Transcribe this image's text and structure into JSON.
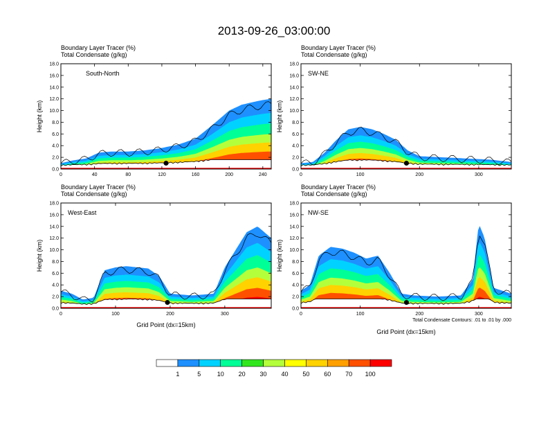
{
  "title": "2013-09-26_03:00:00",
  "colorbar": {
    "labels": [
      "1",
      "5",
      "10",
      "20",
      "30",
      "40",
      "50",
      "60",
      "70",
      "100"
    ],
    "colors": [
      "#ffffff",
      "#1e90ff",
      "#00d2ff",
      "#00ff96",
      "#32e61e",
      "#b4ff3c",
      "#ffff00",
      "#ffd200",
      "#ffa000",
      "#ff5000",
      "#ff0000"
    ]
  },
  "contour_note": "Total Condensate Contours: .01 to .01 by .000",
  "chart_data": [
    {
      "type": "heatmap",
      "name": "South-North",
      "label": "South-North",
      "field1": "Boundary Layer Tracer",
      "unit1": "(%)",
      "field2": "Total Condensate",
      "unit2": "(g/kg)",
      "ylabel": "Height (km)",
      "xlabel": "",
      "xlim": [
        0,
        250
      ],
      "ylim": [
        0,
        18
      ],
      "xticks": [
        "0",
        "40",
        "80",
        "120",
        "160",
        "200",
        "240"
      ],
      "yticks": [
        "0.0",
        "2.0",
        "4.0",
        "6.0",
        "8.0",
        "10.0",
        "12.0",
        "14.0",
        "16.0",
        "18.0"
      ],
      "marker_x": 125,
      "profile": {
        "x": [
          0,
          15,
          30,
          45,
          60,
          80,
          100,
          120,
          140,
          160,
          180,
          200,
          215,
          230,
          240,
          250
        ],
        "top": [
          1.0,
          1.5,
          1.8,
          2.8,
          3.0,
          3.0,
          3.2,
          3.6,
          4.2,
          5.2,
          7.5,
          10.0,
          11.0,
          11.5,
          11.8,
          12.0
        ]
      }
    },
    {
      "type": "heatmap",
      "name": "SW-NE",
      "label": "SW-NE",
      "field1": "Boundary Layer Tracer",
      "unit1": "(%)",
      "field2": "Total Condensate",
      "unit2": "(g/kg)",
      "ylabel": "Height (km)",
      "xlabel": "",
      "xlim": [
        0,
        355
      ],
      "ylim": [
        0,
        18
      ],
      "xticks": [
        "0",
        "100",
        "200",
        "300"
      ],
      "yticks": [
        "0.0",
        "2.0",
        "4.0",
        "6.0",
        "8.0",
        "10.0",
        "12.0",
        "14.0",
        "16.0",
        "18.0"
      ],
      "marker_x": 178,
      "profile": {
        "x": [
          0,
          20,
          40,
          60,
          80,
          100,
          120,
          140,
          160,
          180,
          200,
          240,
          280,
          320,
          355
        ],
        "top": [
          1.0,
          1.2,
          2.8,
          5.0,
          6.8,
          7.2,
          6.8,
          6.0,
          5.0,
          3.2,
          2.2,
          2.0,
          1.8,
          1.6,
          1.2
        ]
      }
    },
    {
      "type": "heatmap",
      "name": "West-East",
      "label": "West-East",
      "field1": "Boundary Layer Tracer",
      "unit1": "(%)",
      "field2": "Total Condensate",
      "unit2": "(g/kg)",
      "ylabel": "Height (km)",
      "xlabel": "Grid Point (dx=15km)",
      "xlim": [
        0,
        385
      ],
      "ylim": [
        0,
        18
      ],
      "xticks": [
        "0",
        "100",
        "200",
        "300"
      ],
      "yticks": [
        "0.0",
        "2.0",
        "4.0",
        "6.0",
        "8.0",
        "10.0",
        "12.0",
        "14.0",
        "16.0",
        "18.0"
      ],
      "marker_x": 195,
      "profile": {
        "x": [
          0,
          20,
          40,
          60,
          80,
          100,
          120,
          140,
          160,
          180,
          200,
          240,
          280,
          300,
          320,
          340,
          360,
          385
        ],
        "top": [
          3.0,
          2.5,
          1.5,
          1.8,
          6.5,
          7.0,
          7.2,
          7.0,
          6.8,
          5.5,
          2.5,
          2.2,
          2.5,
          7.0,
          10.0,
          13.0,
          14.0,
          12.0
        ]
      }
    },
    {
      "type": "heatmap",
      "name": "NW-SE",
      "label": "NW-SE",
      "field1": "Boundary Layer Tracer",
      "unit1": "(%)",
      "field2": "Total Condensate",
      "unit2": "(g/kg)",
      "ylabel": "Height (km)",
      "xlabel": "Grid Point (dx=15km)",
      "xlim": [
        0,
        355
      ],
      "ylim": [
        0,
        18
      ],
      "xticks": [
        "0",
        "100",
        "200",
        "300"
      ],
      "yticks": [
        "0.0",
        "2.0",
        "4.0",
        "6.0",
        "8.0",
        "10.0",
        "12.0",
        "14.0",
        "16.0",
        "18.0"
      ],
      "marker_x": 178,
      "profile": {
        "x": [
          0,
          15,
          30,
          50,
          70,
          90,
          110,
          130,
          150,
          170,
          190,
          230,
          270,
          290,
          300,
          310,
          325,
          340,
          355
        ],
        "top": [
          3.0,
          4.0,
          9.0,
          10.5,
          10.2,
          9.5,
          8.5,
          9.0,
          6.0,
          2.5,
          2.2,
          2.0,
          2.2,
          5.0,
          14.5,
          12.0,
          3.5,
          3.0,
          2.5
        ]
      }
    }
  ]
}
